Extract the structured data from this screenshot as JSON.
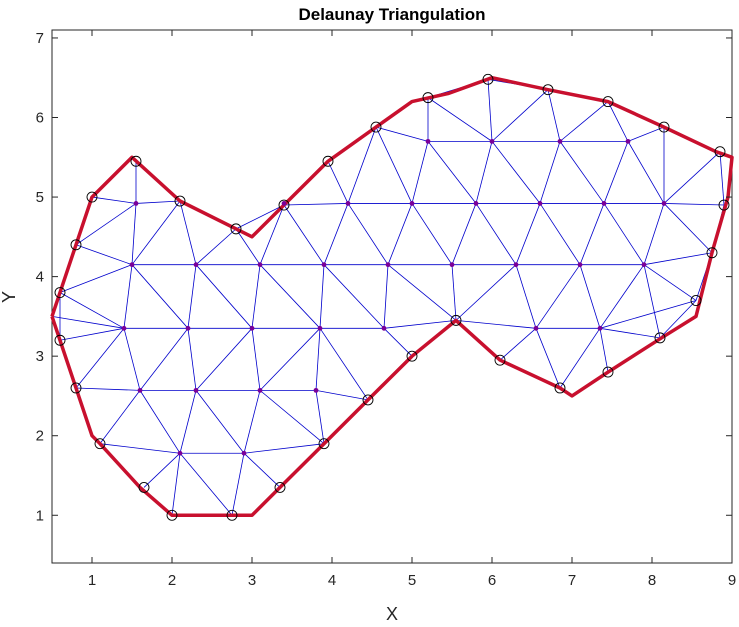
{
  "chart_data": {
    "type": "scatter",
    "title": "Delaunay Triangulation",
    "xlabel": "X",
    "ylabel": "Y",
    "xlim": [
      0.5,
      9
    ],
    "ylim": [
      0.4,
      7.1
    ],
    "xticks": [
      1,
      2,
      3,
      4,
      5,
      6,
      7,
      8,
      9
    ],
    "yticks": [
      1,
      2,
      3,
      4,
      5,
      6,
      7
    ],
    "grid": false,
    "colors": {
      "edges": "#0000cc",
      "boundary": "#c8102e",
      "interior": "#7a0099",
      "markers": "#000000"
    },
    "boundary": [
      [
        0.5,
        3.5
      ],
      [
        0.6,
        3.8
      ],
      [
        0.8,
        4.4
      ],
      [
        1.0,
        5.0
      ],
      [
        1.5,
        5.5
      ],
      [
        2.1,
        4.95
      ],
      [
        3.0,
        4.5
      ],
      [
        3.4,
        4.9
      ],
      [
        3.95,
        5.45
      ],
      [
        4.55,
        5.88
      ],
      [
        5.0,
        6.2
      ],
      [
        5.45,
        6.3
      ],
      [
        6.0,
        6.5
      ],
      [
        6.7,
        6.35
      ],
      [
        7.45,
        6.2
      ],
      [
        8.15,
        5.88
      ],
      [
        8.8,
        5.57
      ],
      [
        9.0,
        5.5
      ],
      [
        8.95,
        5.0
      ],
      [
        8.75,
        4.3
      ],
      [
        8.55,
        3.5
      ],
      [
        8.15,
        3.25
      ],
      [
        7.45,
        2.8
      ],
      [
        7.0,
        2.5
      ],
      [
        6.85,
        2.6
      ],
      [
        6.1,
        2.95
      ],
      [
        5.55,
        3.45
      ],
      [
        5.0,
        3.0
      ],
      [
        4.45,
        2.45
      ],
      [
        3.9,
        1.9
      ],
      [
        3.35,
        1.35
      ],
      [
        3.0,
        1.0
      ],
      [
        2.75,
        1.0
      ],
      [
        2.0,
        1.0
      ],
      [
        1.6,
        1.35
      ],
      [
        1.1,
        1.9
      ],
      [
        1.0,
        2.0
      ],
      [
        0.8,
        2.6
      ],
      [
        0.6,
        3.2
      ],
      [
        0.5,
        3.5
      ]
    ],
    "outer_points": [
      [
        0.6,
        3.8
      ],
      [
        0.8,
        4.4
      ],
      [
        1.0,
        5.0
      ],
      [
        1.55,
        5.45
      ],
      [
        2.1,
        4.95
      ],
      [
        2.8,
        4.6
      ],
      [
        3.4,
        4.9
      ],
      [
        3.95,
        5.45
      ],
      [
        4.55,
        5.88
      ],
      [
        5.2,
        6.25
      ],
      [
        5.95,
        6.48
      ],
      [
        6.7,
        6.35
      ],
      [
        7.45,
        6.2
      ],
      [
        8.15,
        5.88
      ],
      [
        8.85,
        5.57
      ],
      [
        8.9,
        4.9
      ],
      [
        8.75,
        4.3
      ],
      [
        8.55,
        3.7
      ],
      [
        8.1,
        3.23
      ],
      [
        7.45,
        2.8
      ],
      [
        6.85,
        2.6
      ],
      [
        6.1,
        2.95
      ],
      [
        5.55,
        3.45
      ],
      [
        5.0,
        3.0
      ],
      [
        4.45,
        2.45
      ],
      [
        3.9,
        1.9
      ],
      [
        3.35,
        1.35
      ],
      [
        2.75,
        1.0
      ],
      [
        2.0,
        1.0
      ],
      [
        1.65,
        1.35
      ],
      [
        1.1,
        1.9
      ],
      [
        0.8,
        2.6
      ],
      [
        0.6,
        3.2
      ]
    ],
    "interior_points": [
      [
        1.55,
        4.92
      ],
      [
        1.5,
        4.15
      ],
      [
        2.3,
        4.15
      ],
      [
        3.1,
        4.15
      ],
      [
        3.9,
        4.15
      ],
      [
        4.7,
        4.15
      ],
      [
        5.5,
        4.15
      ],
      [
        6.3,
        4.15
      ],
      [
        7.1,
        4.15
      ],
      [
        7.9,
        4.15
      ],
      [
        3.4,
        4.92
      ],
      [
        4.2,
        4.92
      ],
      [
        5.0,
        4.92
      ],
      [
        5.8,
        4.92
      ],
      [
        6.6,
        4.92
      ],
      [
        7.4,
        4.92
      ],
      [
        8.15,
        4.92
      ],
      [
        5.2,
        5.7
      ],
      [
        6.0,
        5.7
      ],
      [
        6.85,
        5.7
      ],
      [
        7.7,
        5.7
      ],
      [
        1.4,
        3.35
      ],
      [
        2.2,
        3.35
      ],
      [
        3.0,
        3.35
      ],
      [
        3.85,
        3.35
      ],
      [
        4.65,
        3.35
      ],
      [
        6.55,
        3.35
      ],
      [
        7.35,
        3.35
      ],
      [
        1.6,
        2.57
      ],
      [
        2.3,
        2.57
      ],
      [
        3.1,
        2.57
      ],
      [
        3.8,
        2.57
      ],
      [
        2.1,
        1.78
      ],
      [
        2.9,
        1.78
      ]
    ],
    "edges": [
      [
        0.6,
        3.8,
        1.5,
        4.15
      ],
      [
        0.8,
        4.4,
        1.5,
        4.15
      ],
      [
        1.0,
        5.0,
        1.55,
        4.92
      ],
      [
        1.55,
        5.45,
        1.55,
        4.92
      ],
      [
        0.8,
        4.4,
        1.55,
        4.92
      ],
      [
        1.5,
        4.15,
        1.55,
        4.92
      ],
      [
        1.55,
        4.92,
        2.1,
        4.95
      ],
      [
        1.5,
        4.15,
        2.1,
        4.95
      ],
      [
        2.1,
        4.95,
        2.3,
        4.15
      ],
      [
        2.3,
        4.15,
        2.8,
        4.6
      ],
      [
        2.8,
        4.6,
        3.1,
        4.15
      ],
      [
        3.1,
        4.15,
        3.4,
        4.9
      ],
      [
        1.5,
        4.15,
        2.3,
        4.15
      ],
      [
        2.3,
        4.15,
        3.1,
        4.15
      ],
      [
        3.1,
        4.15,
        3.9,
        4.15
      ],
      [
        3.9,
        4.15,
        4.7,
        4.15
      ],
      [
        4.7,
        4.15,
        5.5,
        4.15
      ],
      [
        5.5,
        4.15,
        6.3,
        4.15
      ],
      [
        6.3,
        4.15,
        7.1,
        4.15
      ],
      [
        7.1,
        4.15,
        7.9,
        4.15
      ],
      [
        7.9,
        4.15,
        8.75,
        4.3
      ],
      [
        3.4,
        4.9,
        4.2,
        4.92
      ],
      [
        4.2,
        4.92,
        5.0,
        4.92
      ],
      [
        5.0,
        4.92,
        5.8,
        4.92
      ],
      [
        5.8,
        4.92,
        6.6,
        4.92
      ],
      [
        6.6,
        4.92,
        7.4,
        4.92
      ],
      [
        7.4,
        4.92,
        8.15,
        4.92
      ],
      [
        8.15,
        4.92,
        8.9,
        4.9
      ],
      [
        3.4,
        4.9,
        3.9,
        4.15
      ],
      [
        3.9,
        4.15,
        4.2,
        4.92
      ],
      [
        4.2,
        4.92,
        4.7,
        4.15
      ],
      [
        4.7,
        4.15,
        5.0,
        4.92
      ],
      [
        5.0,
        4.92,
        5.5,
        4.15
      ],
      [
        5.5,
        4.15,
        5.8,
        4.92
      ],
      [
        5.8,
        4.92,
        6.3,
        4.15
      ],
      [
        6.3,
        4.15,
        6.6,
        4.92
      ],
      [
        6.6,
        4.92,
        7.1,
        4.15
      ],
      [
        7.1,
        4.15,
        7.4,
        4.92
      ],
      [
        7.4,
        4.92,
        7.9,
        4.15
      ],
      [
        7.9,
        4.15,
        8.15,
        4.92
      ],
      [
        8.15,
        4.92,
        8.75,
        4.3
      ],
      [
        3.95,
        5.45,
        4.2,
        4.92
      ],
      [
        3.95,
        5.45,
        3.4,
        4.9
      ],
      [
        4.55,
        5.88,
        4.2,
        4.92
      ],
      [
        4.55,
        5.88,
        5.0,
        4.92
      ],
      [
        4.55,
        5.88,
        5.2,
        5.7
      ],
      [
        5.2,
        5.7,
        5.0,
        4.92
      ],
      [
        5.2,
        5.7,
        5.8,
        4.92
      ],
      [
        5.2,
        5.7,
        5.2,
        6.25
      ],
      [
        5.2,
        5.7,
        6.0,
        5.7
      ],
      [
        6.0,
        5.7,
        6.85,
        5.7
      ],
      [
        6.85,
        5.7,
        7.7,
        5.7
      ],
      [
        6.0,
        5.7,
        5.8,
        4.92
      ],
      [
        6.0,
        5.7,
        6.6,
        4.92
      ],
      [
        6.85,
        5.7,
        6.6,
        4.92
      ],
      [
        6.85,
        5.7,
        7.4,
        4.92
      ],
      [
        7.7,
        5.7,
        7.4,
        4.92
      ],
      [
        7.7,
        5.7,
        8.15,
        4.92
      ],
      [
        5.2,
        6.25,
        5.95,
        6.48
      ],
      [
        5.95,
        6.48,
        6.0,
        5.7
      ],
      [
        5.2,
        6.25,
        6.0,
        5.7
      ],
      [
        5.95,
        6.48,
        6.7,
        6.35
      ],
      [
        6.7,
        6.35,
        6.0,
        5.7
      ],
      [
        6.7,
        6.35,
        6.85,
        5.7
      ],
      [
        7.45,
        6.2,
        6.85,
        5.7
      ],
      [
        7.45,
        6.2,
        7.7,
        5.7
      ],
      [
        8.15,
        5.88,
        7.7,
        5.7
      ],
      [
        8.15,
        5.88,
        8.15,
        4.92
      ],
      [
        8.85,
        5.57,
        8.15,
        4.92
      ],
      [
        8.85,
        5.57,
        8.9,
        4.9
      ],
      [
        0.6,
        3.8,
        1.4,
        3.35
      ],
      [
        0.5,
        3.5,
        1.4,
        3.35
      ],
      [
        0.6,
        3.2,
        1.4,
        3.35
      ],
      [
        1.5,
        4.15,
        1.4,
        3.35
      ],
      [
        1.4,
        3.35,
        2.2,
        3.35
      ],
      [
        2.2,
        3.35,
        3.0,
        3.35
      ],
      [
        3.0,
        3.35,
        3.85,
        3.35
      ],
      [
        3.85,
        3.35,
        4.65,
        3.35
      ],
      [
        4.65,
        3.35,
        5.55,
        3.45
      ],
      [
        5.55,
        3.45,
        6.55,
        3.35
      ],
      [
        6.55,
        3.35,
        7.35,
        3.35
      ],
      [
        7.35,
        3.35,
        8.55,
        3.7
      ],
      [
        1.5,
        4.15,
        2.2,
        3.35
      ],
      [
        2.3,
        4.15,
        2.2,
        3.35
      ],
      [
        2.3,
        4.15,
        3.0,
        3.35
      ],
      [
        3.1,
        4.15,
        3.0,
        3.35
      ],
      [
        3.1,
        4.15,
        3.85,
        3.35
      ],
      [
        3.9,
        4.15,
        3.85,
        3.35
      ],
      [
        3.9,
        4.15,
        4.65,
        3.35
      ],
      [
        4.7,
        4.15,
        4.65,
        3.35
      ],
      [
        4.7,
        4.15,
        5.55,
        3.45
      ],
      [
        5.5,
        4.15,
        5.55,
        3.45
      ],
      [
        6.3,
        4.15,
        5.55,
        3.45
      ],
      [
        6.3,
        4.15,
        6.55,
        3.35
      ],
      [
        7.1,
        4.15,
        6.55,
        3.35
      ],
      [
        7.1,
        4.15,
        7.35,
        3.35
      ],
      [
        7.9,
        4.15,
        7.35,
        3.35
      ],
      [
        7.9,
        4.15,
        8.55,
        3.7
      ],
      [
        7.9,
        4.15,
        8.1,
        3.23
      ],
      [
        7.35,
        3.35,
        8.1,
        3.23
      ],
      [
        7.35,
        3.35,
        7.45,
        2.8
      ],
      [
        6.85,
        2.6,
        7.35,
        3.35
      ],
      [
        6.85,
        2.6,
        6.55,
        3.35
      ],
      [
        6.1,
        2.95,
        6.55,
        3.35
      ],
      [
        6.1,
        2.95,
        5.55,
        3.45
      ],
      [
        4.65,
        3.35,
        5.0,
        3.0
      ],
      [
        3.85,
        3.35,
        4.45,
        2.45
      ],
      [
        0.8,
        2.6,
        1.4,
        3.35
      ],
      [
        0.8,
        2.6,
        1.6,
        2.57
      ],
      [
        1.4,
        3.35,
        1.6,
        2.57
      ],
      [
        2.2,
        3.35,
        1.6,
        2.57
      ],
      [
        2.2,
        3.35,
        2.3,
        2.57
      ],
      [
        3.0,
        3.35,
        2.3,
        2.57
      ],
      [
        3.0,
        3.35,
        3.1,
        2.57
      ],
      [
        3.85,
        3.35,
        3.1,
        2.57
      ],
      [
        3.85,
        3.35,
        3.8,
        2.57
      ],
      [
        1.6,
        2.57,
        2.3,
        2.57
      ],
      [
        2.3,
        2.57,
        3.1,
        2.57
      ],
      [
        3.1,
        2.57,
        3.8,
        2.57
      ],
      [
        3.8,
        2.57,
        4.45,
        2.45
      ],
      [
        3.8,
        2.57,
        3.9,
        1.9
      ],
      [
        3.1,
        2.57,
        3.9,
        1.9
      ],
      [
        1.1,
        1.9,
        1.6,
        2.57
      ],
      [
        1.1,
        1.9,
        2.1,
        1.78
      ],
      [
        1.6,
        2.57,
        2.1,
        1.78
      ],
      [
        2.3,
        2.57,
        2.1,
        1.78
      ],
      [
        2.3,
        2.57,
        2.9,
        1.78
      ],
      [
        3.1,
        2.57,
        2.9,
        1.78
      ],
      [
        2.9,
        1.78,
        3.9,
        1.9
      ],
      [
        2.1,
        1.78,
        2.9,
        1.78
      ],
      [
        1.65,
        1.35,
        2.1,
        1.78
      ],
      [
        2.0,
        1.0,
        2.1,
        1.78
      ],
      [
        2.75,
        1.0,
        2.1,
        1.78
      ],
      [
        2.75,
        1.0,
        2.9,
        1.78
      ],
      [
        3.35,
        1.35,
        2.9,
        1.78
      ],
      [
        0.8,
        4.4,
        0.6,
        3.8
      ],
      [
        0.6,
        3.8,
        0.6,
        3.2
      ],
      [
        1.55,
        5.45,
        2.1,
        4.95
      ],
      [
        2.1,
        4.95,
        2.8,
        4.6
      ],
      [
        2.8,
        4.6,
        3.4,
        4.9
      ],
      [
        8.9,
        4.9,
        8.75,
        4.3
      ],
      [
        8.75,
        4.3,
        8.55,
        3.7
      ],
      [
        8.55,
        3.7,
        8.1,
        3.23
      ],
      [
        8.85,
        5.57,
        9.0,
        5.5
      ]
    ]
  }
}
